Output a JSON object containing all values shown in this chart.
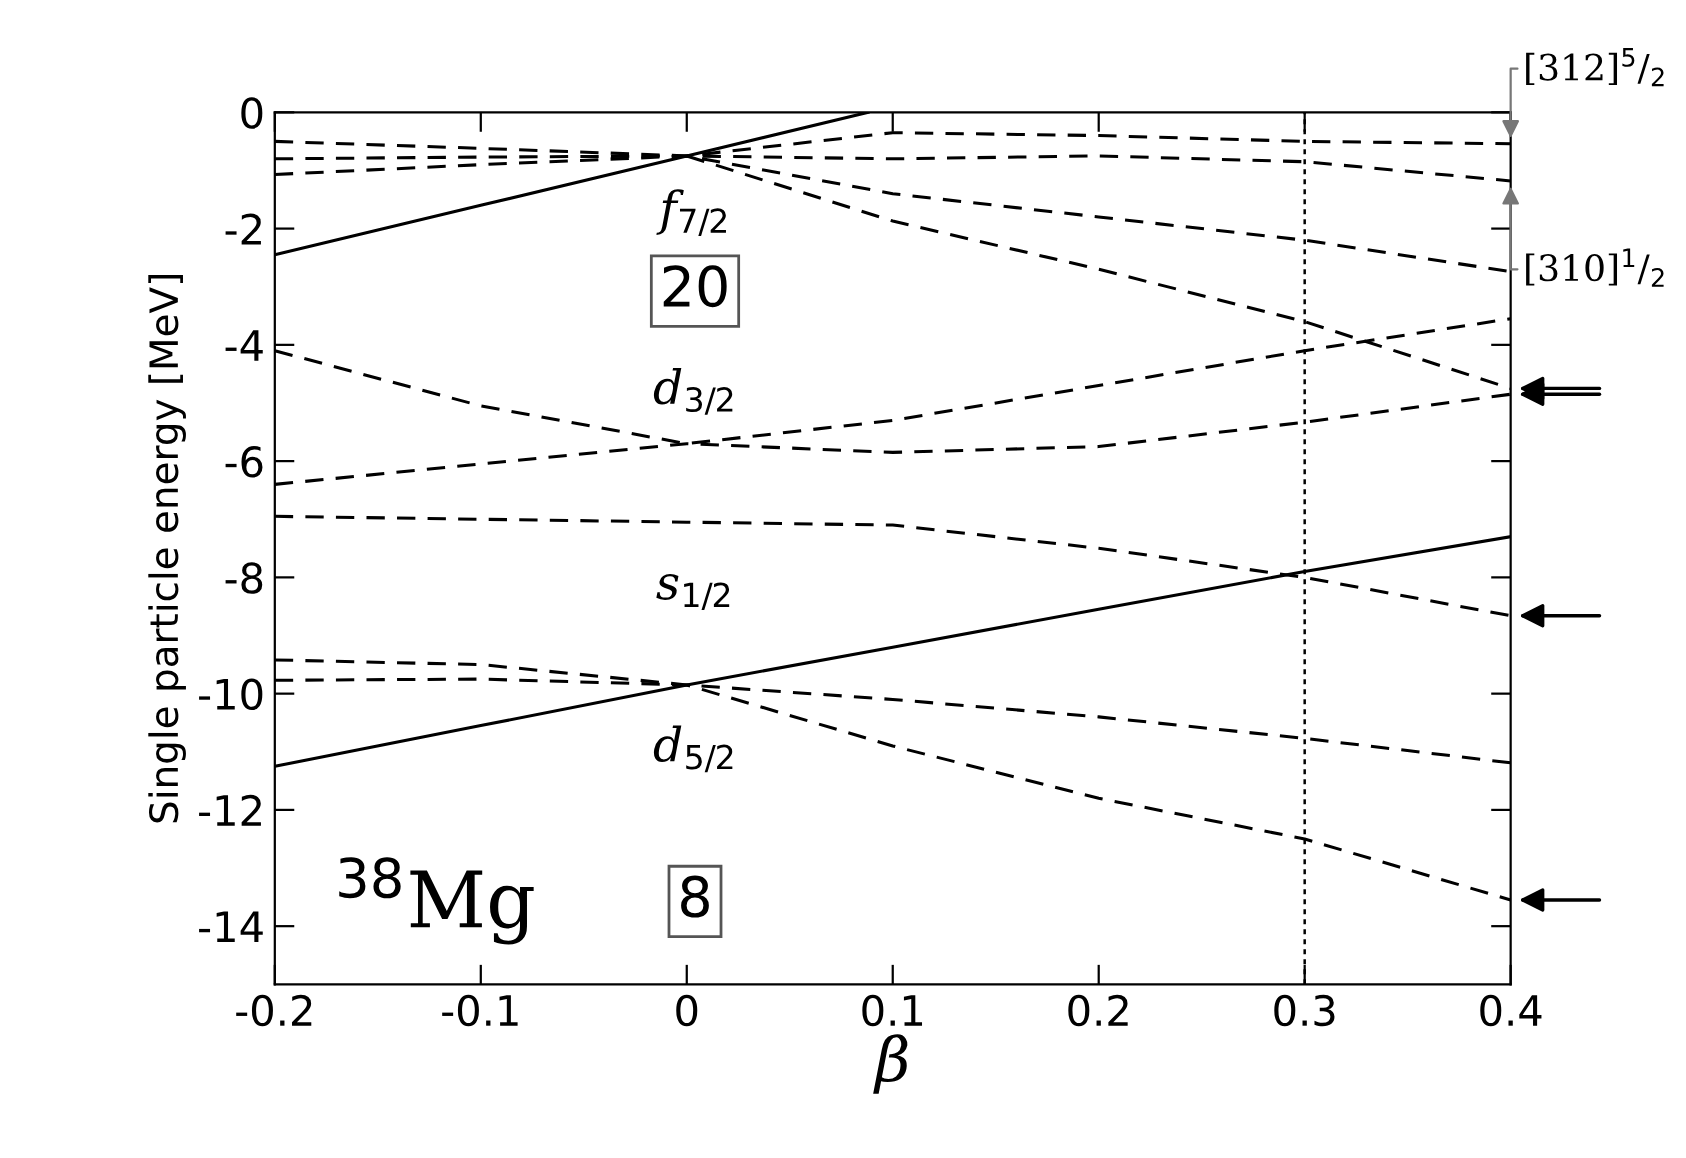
{
  "chart_data": {
    "type": "line",
    "xlabel": "β",
    "ylabel": "Single particle energy [MeV]",
    "xlim": [
      -0.2,
      0.4
    ],
    "ylim": [
      -15,
      0
    ],
    "xticks": [
      -0.2,
      -0.1,
      0,
      0.1,
      0.2,
      0.3,
      0.4
    ],
    "yticks": [
      -14,
      -12,
      -10,
      -8,
      -6,
      -4,
      -2,
      0
    ],
    "grid": false,
    "legend": false,
    "marker": "none",
    "series": [
      {
        "color": "#000000",
        "line_style": "solid",
        "x": [
          -0.2,
          -0.1,
          0,
          0.088
        ],
        "values": [
          -2.45,
          -1.6,
          -0.75,
          0
        ]
      },
      {
        "color": "#000000",
        "line_style": "dashed",
        "x": [
          -0.2,
          -0.1,
          0,
          0.1,
          0.2,
          0.3,
          0.4
        ],
        "values": [
          -0.5,
          -0.62,
          -0.75,
          -0.35,
          -0.4,
          -0.5,
          -0.54
        ]
      },
      {
        "color": "#000000",
        "line_style": "dashed",
        "x": [
          -0.2,
          -0.1,
          0,
          0.1,
          0.2,
          0.3,
          0.4
        ],
        "values": [
          -0.8,
          -0.77,
          -0.75,
          -0.8,
          -0.75,
          -0.85,
          -1.18
        ]
      },
      {
        "color": "#000000",
        "line_style": "dashed",
        "x": [
          -0.2,
          -0.1,
          0,
          0.1,
          0.2,
          0.3,
          0.4
        ],
        "values": [
          -1.07,
          -0.9,
          -0.75,
          -1.4,
          -1.8,
          -2.2,
          -2.74
        ]
      },
      {
        "color": "#000000",
        "line_style": "dashed",
        "x": [
          0,
          0.1,
          0.2,
          0.3,
          0.4
        ],
        "values": [
          -0.75,
          -1.87,
          -2.7,
          -3.6,
          -4.75
        ]
      },
      {
        "color": "#000000",
        "line_style": "dashed",
        "x": [
          -0.2,
          -0.1,
          0,
          0.1,
          0.2,
          0.3,
          0.4
        ],
        "values": [
          -4.1,
          -5.05,
          -5.7,
          -5.3,
          -4.7,
          -4.1,
          -3.55
        ]
      },
      {
        "color": "#000000",
        "line_style": "dashed",
        "x": [
          -0.2,
          -0.1,
          0,
          0.1,
          0.2,
          0.3,
          0.4
        ],
        "values": [
          -6.4,
          -6.05,
          -5.7,
          -5.85,
          -5.75,
          -5.33,
          -4.85
        ]
      },
      {
        "color": "#000000",
        "line_style": "dashed",
        "x": [
          -0.2,
          -0.1,
          0,
          0.1,
          0.2,
          0.3,
          0.4
        ],
        "values": [
          -6.95,
          -7.0,
          -7.05,
          -7.1,
          -7.5,
          -8.0,
          -8.66
        ]
      },
      {
        "color": "#000000",
        "line_style": "solid",
        "x": [
          -0.2,
          -0.1,
          0,
          0.1,
          0.2,
          0.3,
          0.4
        ],
        "values": [
          -11.25,
          -10.55,
          -9.85,
          -9.2,
          -8.55,
          -7.9,
          -7.3
        ]
      },
      {
        "color": "#000000",
        "line_style": "dashed",
        "x": [
          -0.2,
          -0.1,
          0,
          0.1,
          0.2,
          0.3,
          0.4
        ],
        "values": [
          -9.42,
          -9.5,
          -9.85,
          -10.1,
          -10.4,
          -10.77,
          -11.19
        ]
      },
      {
        "color": "#000000",
        "line_style": "dashed",
        "x": [
          -0.2,
          -0.1,
          0,
          0.1,
          0.2,
          0.3,
          0.4
        ],
        "values": [
          -9.77,
          -9.75,
          -9.85,
          -10.9,
          -11.8,
          -12.5,
          -13.55
        ]
      }
    ],
    "ref_lines": [
      {
        "axis": "x",
        "value": 0.3,
        "line_style": "dotted",
        "color": "#000000"
      }
    ],
    "annotations": [
      "f$_{7/2}$",
      "20",
      "d$_{3/2}$",
      "s$_{1/2}$",
      "d$_{5/2}$",
      "$^{38}$Mg",
      "8",
      {
        "text": "[312]$^{5}$/$_{2}$",
        "x": 0.4,
        "y": -0.54
      },
      {
        "text": "[310]$^{1}$/$_{2}$",
        "x": 0.4,
        "y": -1.18
      }
    ]
  }
}
